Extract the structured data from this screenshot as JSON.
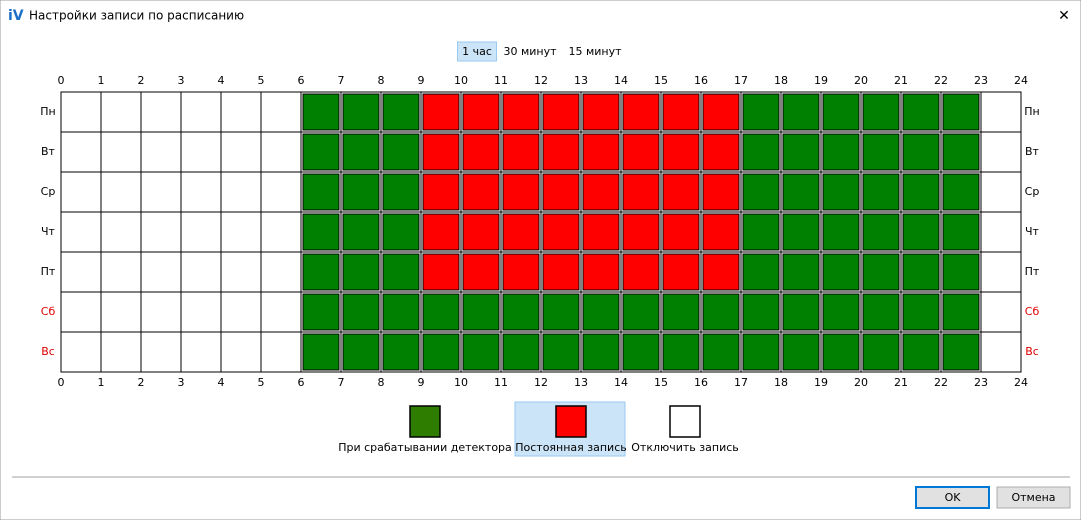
{
  "window": {
    "title": "Настройки записи по расписанию",
    "close": "✕"
  },
  "tabs": {
    "items": [
      "1 час",
      "30 минут",
      "15 минут"
    ],
    "selected": 0
  },
  "hours": [
    "0",
    "1",
    "2",
    "3",
    "4",
    "5",
    "6",
    "7",
    "8",
    "9",
    "10",
    "11",
    "12",
    "13",
    "14",
    "15",
    "16",
    "17",
    "18",
    "19",
    "20",
    "21",
    "22",
    "23",
    "24"
  ],
  "days": [
    {
      "label": "Пн",
      "color": "#000000",
      "cells": [
        2,
        2,
        2,
        2,
        2,
        2,
        0,
        0,
        0,
        1,
        1,
        1,
        1,
        1,
        1,
        1,
        1,
        0,
        0,
        0,
        0,
        0,
        0,
        2
      ]
    },
    {
      "label": "Вт",
      "color": "#000000",
      "cells": [
        2,
        2,
        2,
        2,
        2,
        2,
        0,
        0,
        0,
        1,
        1,
        1,
        1,
        1,
        1,
        1,
        1,
        0,
        0,
        0,
        0,
        0,
        0,
        2
      ]
    },
    {
      "label": "Ср",
      "color": "#000000",
      "cells": [
        2,
        2,
        2,
        2,
        2,
        2,
        0,
        0,
        0,
        1,
        1,
        1,
        1,
        1,
        1,
        1,
        1,
        0,
        0,
        0,
        0,
        0,
        0,
        2
      ]
    },
    {
      "label": "Чт",
      "color": "#000000",
      "cells": [
        2,
        2,
        2,
        2,
        2,
        2,
        0,
        0,
        0,
        1,
        1,
        1,
        1,
        1,
        1,
        1,
        1,
        0,
        0,
        0,
        0,
        0,
        0,
        2
      ]
    },
    {
      "label": "Пт",
      "color": "#000000",
      "cells": [
        2,
        2,
        2,
        2,
        2,
        2,
        0,
        0,
        0,
        1,
        1,
        1,
        1,
        1,
        1,
        1,
        1,
        0,
        0,
        0,
        0,
        0,
        0,
        2
      ]
    },
    {
      "label": "Сб",
      "color": "#e00000",
      "cells": [
        2,
        2,
        2,
        2,
        2,
        2,
        0,
        0,
        0,
        0,
        0,
        0,
        0,
        0,
        0,
        0,
        0,
        0,
        0,
        0,
        0,
        0,
        0,
        2
      ]
    },
    {
      "label": "Вс",
      "color": "#e00000",
      "cells": [
        2,
        2,
        2,
        2,
        2,
        2,
        0,
        0,
        0,
        0,
        0,
        0,
        0,
        0,
        0,
        0,
        0,
        0,
        0,
        0,
        0,
        0,
        0,
        2
      ]
    }
  ],
  "legend": {
    "items": [
      {
        "label": "При срабатывании детектора",
        "color": "#2e7d00"
      },
      {
        "label": "Постоянная запись",
        "color": "#ff0000"
      },
      {
        "label": "Отключить запись",
        "color": "#ffffff"
      }
    ],
    "selected": 1
  },
  "buttons": [
    "OK",
    "Отмена"
  ]
}
